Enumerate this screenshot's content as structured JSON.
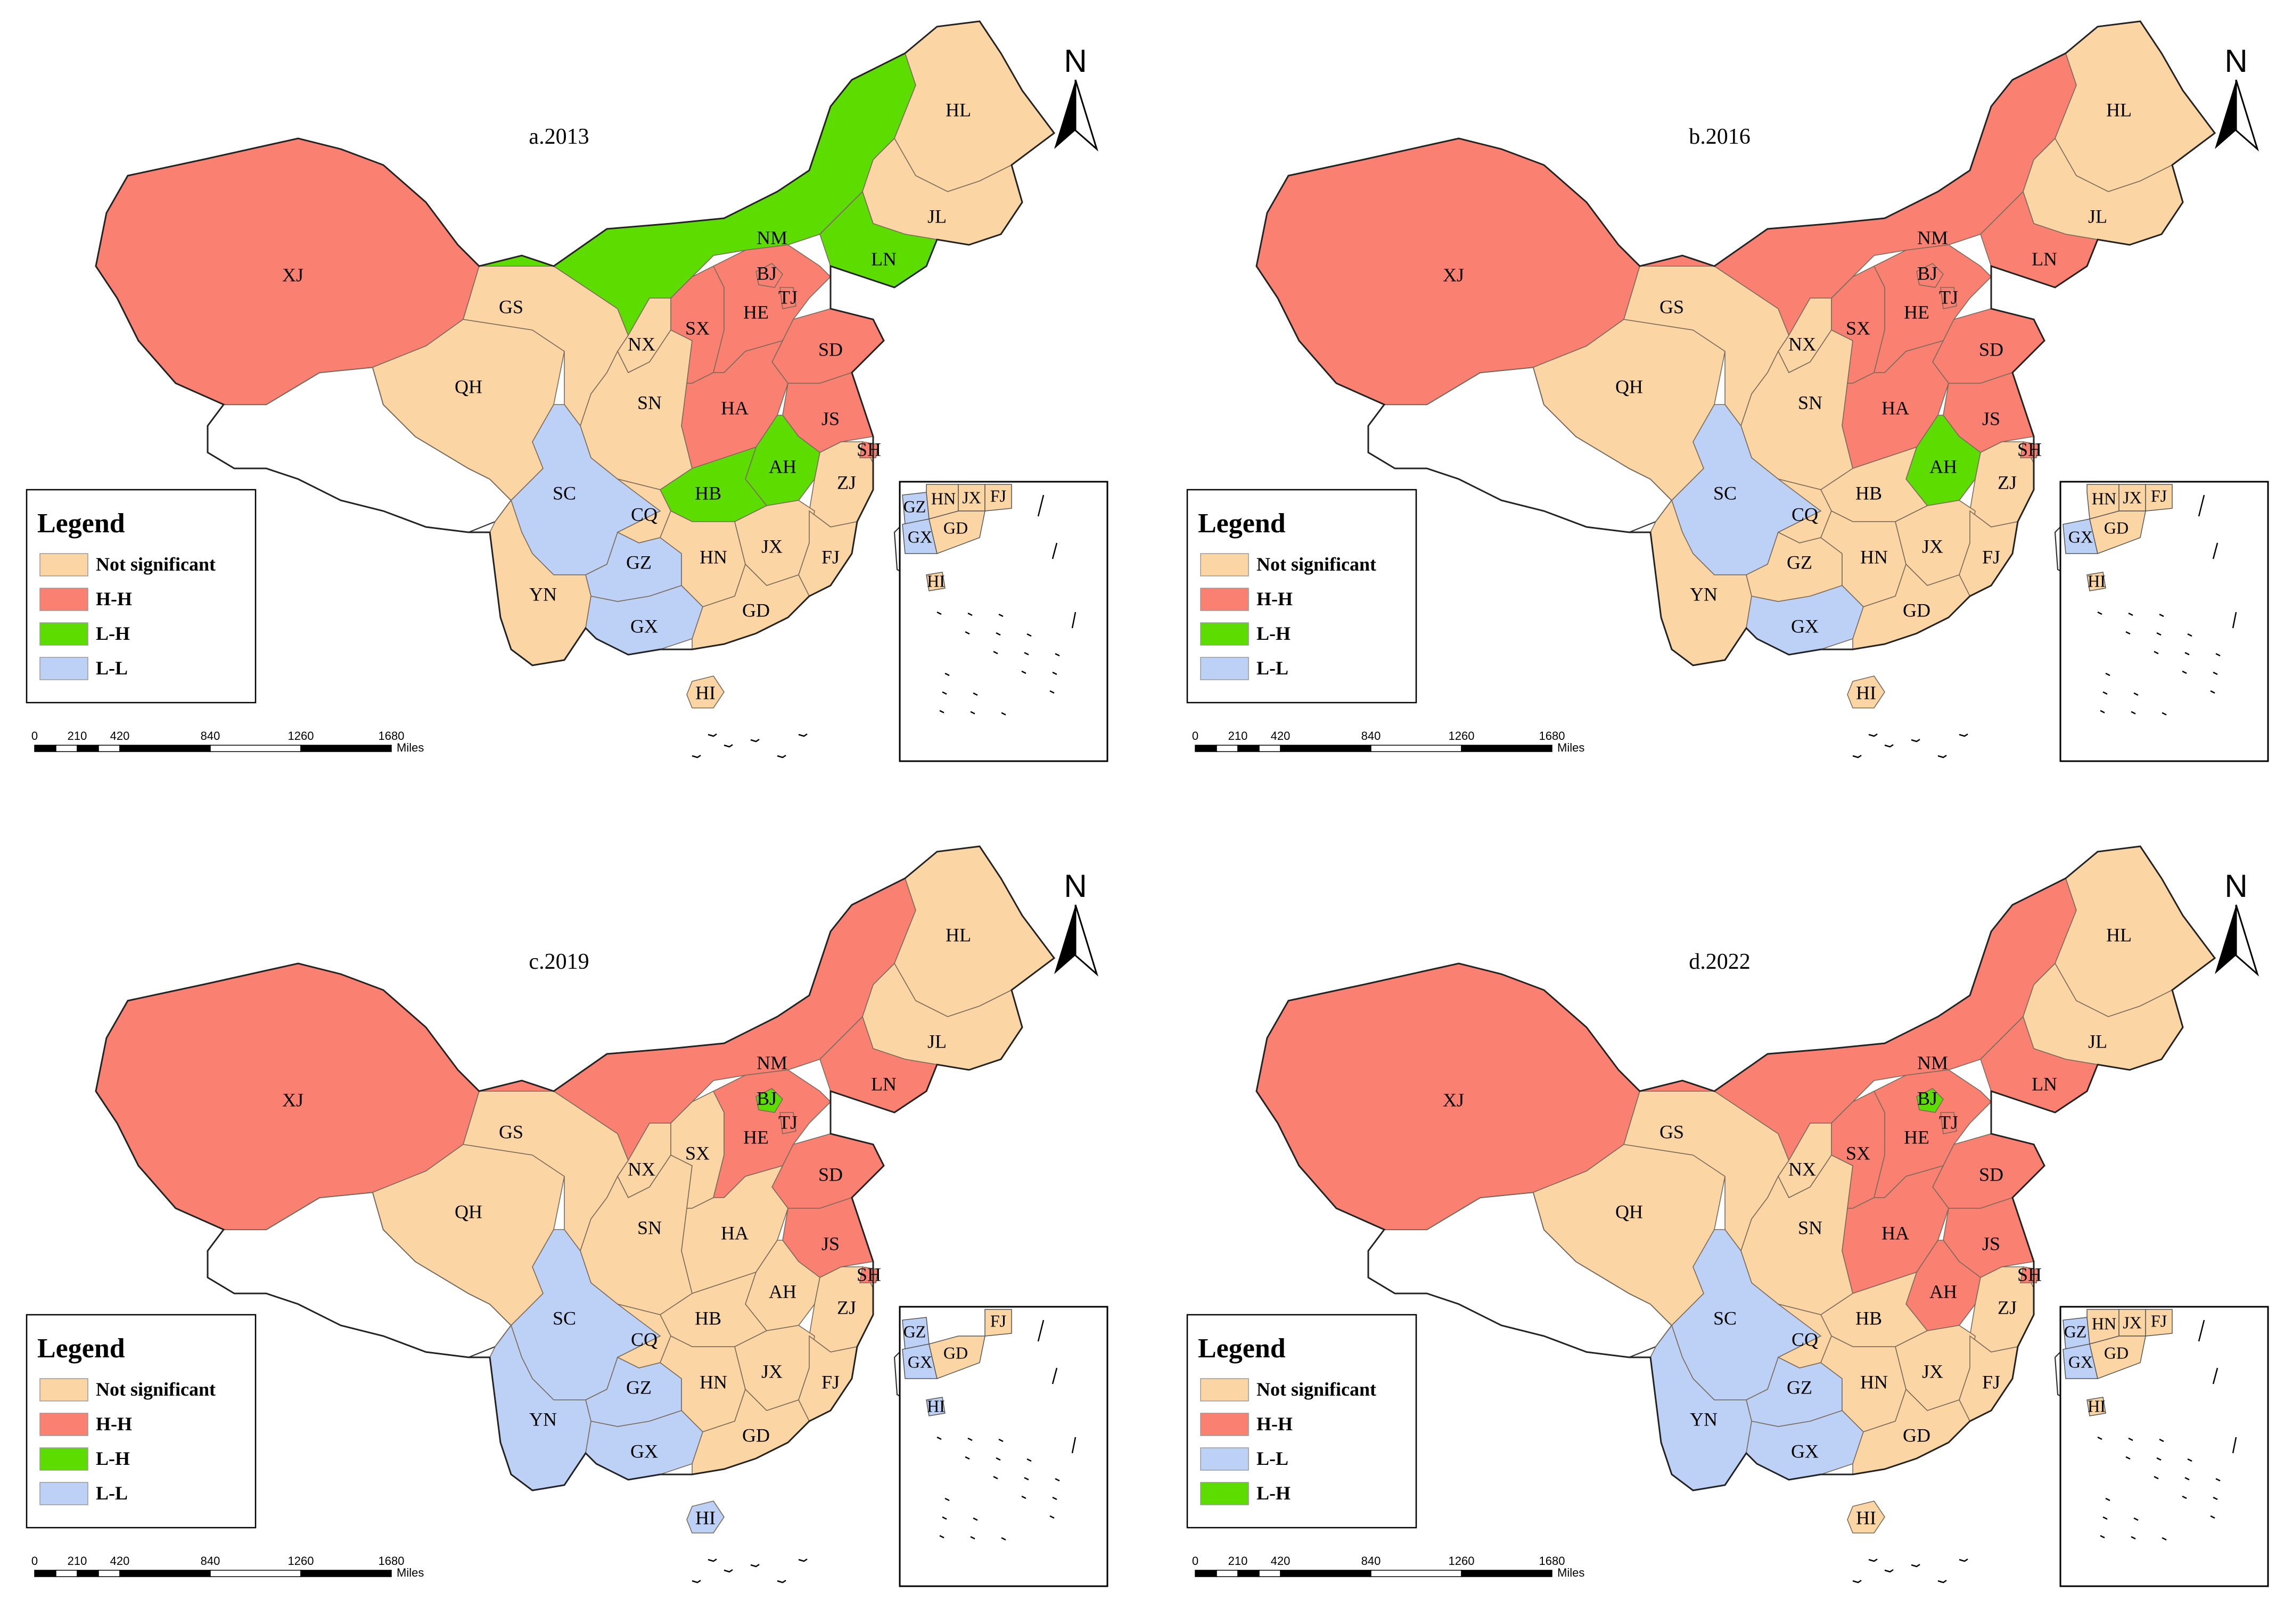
{
  "colors": {
    "Not significant": "#fcd5a4",
    "H-H": "#fa8072",
    "L-H": "#5ddc00",
    "L-L": "#bcd1f5",
    "unassigned": "#ffffff"
  },
  "north_label": "N",
  "scale": {
    "ticks": [
      "0",
      "210",
      "420",
      "840",
      "1260",
      "1680"
    ],
    "unit": "Miles"
  },
  "panels": [
    {
      "title": "a.2013",
      "legend": {
        "title": "Legend",
        "items": [
          "Not significant",
          "H-H",
          "L-H",
          "L-L"
        ]
      },
      "classes": {
        "XJ": "H-H",
        "NM": "L-H",
        "HL": "Not significant",
        "JL": "Not significant",
        "LN": "L-H",
        "GS": "Not significant",
        "QH": "Not significant",
        "NX": "Not significant",
        "SN": "Not significant",
        "SX": "H-H",
        "BJ": "H-H",
        "TJ": "H-H",
        "HE": "H-H",
        "SD": "H-H",
        "HA": "H-H",
        "JS": "H-H",
        "SH": "H-H",
        "AH": "L-H",
        "HB": "L-H",
        "SC": "L-L",
        "CQ": "Not significant",
        "GZ": "L-L",
        "YN": "Not significant",
        "GX": "L-L",
        "HN": "Not significant",
        "JX": "Not significant",
        "ZJ": "Not significant",
        "FJ": "Not significant",
        "GD": "Not significant",
        "HI": "Not significant"
      },
      "inset": {
        "labels": [
          "GZ",
          "HN",
          "JX",
          "FJ",
          "GX",
          "GD",
          "HI"
        ],
        "classes": {
          "GZ": "L-L",
          "HN": "Not significant",
          "JX": "Not significant",
          "FJ": "Not significant",
          "GX": "L-L",
          "GD": "Not significant",
          "HI": "Not significant"
        }
      }
    },
    {
      "title": "b.2016",
      "legend": {
        "title": "Legend",
        "items": [
          "Not significant",
          "H-H",
          "L-H",
          "L-L"
        ]
      },
      "classes": {
        "XJ": "H-H",
        "NM": "H-H",
        "HL": "Not significant",
        "JL": "Not significant",
        "LN": "H-H",
        "GS": "Not significant",
        "QH": "Not significant",
        "NX": "Not significant",
        "SN": "Not significant",
        "SX": "H-H",
        "BJ": "H-H",
        "TJ": "H-H",
        "HE": "H-H",
        "SD": "H-H",
        "HA": "H-H",
        "JS": "H-H",
        "SH": "H-H",
        "AH": "L-H",
        "HB": "Not significant",
        "SC": "L-L",
        "CQ": "Not significant",
        "GZ": "Not significant",
        "YN": "Not significant",
        "GX": "L-L",
        "HN": "Not significant",
        "JX": "Not significant",
        "ZJ": "Not significant",
        "FJ": "Not significant",
        "GD": "Not significant",
        "HI": "Not significant"
      },
      "inset": {
        "labels": [
          "HN",
          "JX",
          "FJ",
          "GX",
          "GD",
          "HI"
        ],
        "classes": {
          "HN": "Not significant",
          "JX": "Not significant",
          "FJ": "Not significant",
          "GX": "L-L",
          "GD": "Not significant",
          "HI": "Not significant"
        }
      }
    },
    {
      "title": "c.2019",
      "legend": {
        "title": "Legend",
        "items": [
          "Not significant",
          "H-H",
          "L-H",
          "L-L"
        ]
      },
      "classes": {
        "XJ": "H-H",
        "NM": "H-H",
        "HL": "Not significant",
        "JL": "Not significant",
        "LN": "H-H",
        "GS": "Not significant",
        "QH": "Not significant",
        "NX": "Not significant",
        "SN": "Not significant",
        "SX": "Not significant",
        "BJ": "L-H",
        "TJ": "H-H",
        "HE": "H-H",
        "SD": "H-H",
        "HA": "Not significant",
        "JS": "H-H",
        "SH": "H-H",
        "AH": "Not significant",
        "HB": "Not significant",
        "SC": "L-L",
        "CQ": "Not significant",
        "GZ": "L-L",
        "YN": "L-L",
        "GX": "L-L",
        "HN": "Not significant",
        "JX": "Not significant",
        "ZJ": "Not significant",
        "FJ": "Not significant",
        "GD": "Not significant",
        "HI": "L-L"
      },
      "inset": {
        "labels": [
          "GZ",
          "FJ",
          "GX",
          "GD",
          "HI"
        ],
        "classes": {
          "GZ": "L-L",
          "FJ": "Not significant",
          "GX": "L-L",
          "GD": "Not significant",
          "HI": "L-L"
        }
      }
    },
    {
      "title": "d.2022",
      "legend": {
        "title": "Legend",
        "items": [
          "Not significant",
          "H-H",
          "L-L",
          "L-H"
        ]
      },
      "classes": {
        "XJ": "H-H",
        "NM": "H-H",
        "HL": "Not significant",
        "JL": "Not significant",
        "LN": "H-H",
        "GS": "Not significant",
        "QH": "Not significant",
        "NX": "Not significant",
        "SN": "Not significant",
        "SX": "H-H",
        "BJ": "L-H",
        "TJ": "H-H",
        "HE": "H-H",
        "SD": "H-H",
        "HA": "H-H",
        "JS": "H-H",
        "SH": "H-H",
        "AH": "H-H",
        "HB": "Not significant",
        "SC": "L-L",
        "CQ": "Not significant",
        "GZ": "L-L",
        "YN": "L-L",
        "GX": "L-L",
        "HN": "Not significant",
        "JX": "Not significant",
        "ZJ": "Not significant",
        "FJ": "Not significant",
        "GD": "Not significant",
        "HI": "Not significant"
      },
      "inset": {
        "labels": [
          "GZ",
          "HN",
          "JX",
          "FJ",
          "GX",
          "GD",
          "HI"
        ],
        "classes": {
          "GZ": "L-L",
          "HN": "Not significant",
          "JX": "Not significant",
          "FJ": "Not significant",
          "GX": "L-L",
          "GD": "Not significant",
          "HI": "Not significant"
        }
      }
    }
  ]
}
